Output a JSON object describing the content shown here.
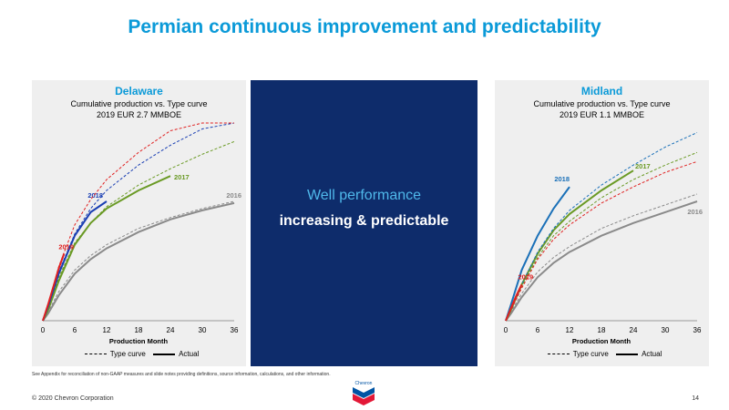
{
  "page": {
    "title": "Permian continuous improvement and predictability",
    "center_line1": "Well performance",
    "center_line2": "increasing & predictable",
    "footnote": "See Appendix for reconciliation of non-GAAP measures and slide notes providing definitions, source information, calculations, and other information.",
    "copyright": "© 2020 Chevron Corporation",
    "page_number": "14",
    "logo_text": "Chevron",
    "colors": {
      "title": "#0b9ad8",
      "center_bg": "#0e2c6b",
      "center_accent": "#4fb8ea",
      "panel_bg": "#efefef"
    }
  },
  "chart_data": [
    {
      "type": "line",
      "title": "Delaware",
      "subtitle": "Cumulative production vs. Type curve",
      "subtitle2": "2019 EUR 2.7 MMBOE",
      "xlabel": "Production Month",
      "ylabel": "",
      "xticks": [
        0,
        6,
        12,
        18,
        24,
        30,
        36
      ],
      "xlim": [
        0,
        36
      ],
      "ylim": [
        0,
        100
      ],
      "grid": false,
      "legend": {
        "position": "bottom",
        "type_curve": "Type curve",
        "actual": "Actual"
      },
      "series": [
        {
          "name": "2016",
          "color": "#8a8a8a",
          "x": [
            0,
            1,
            3,
            6,
            9,
            12,
            18,
            24,
            30,
            36
          ],
          "type_curve": [
            0,
            5,
            16,
            28,
            36,
            42,
            51,
            57,
            62,
            66
          ],
          "actual": [
            0,
            4,
            14,
            26,
            34,
            40,
            49,
            56,
            61,
            65
          ]
        },
        {
          "name": "2017",
          "color": "#6a9a25",
          "x": [
            0,
            1,
            3,
            6,
            9,
            12,
            18,
            24,
            30,
            36
          ],
          "type_curve": [
            0,
            7,
            24,
            43,
            54,
            63,
            75,
            84,
            92,
            99
          ],
          "actual_x": [
            0,
            1,
            3,
            6,
            9,
            12,
            18,
            24
          ],
          "actual": [
            0,
            6,
            22,
            42,
            54,
            62,
            72,
            80
          ]
        },
        {
          "name": "2018",
          "color": "#1a3fb3",
          "x": [
            0,
            1,
            3,
            6,
            9,
            12,
            18,
            24,
            30,
            36
          ],
          "type_curve": [
            0,
            8,
            27,
            48,
            62,
            72,
            86,
            97,
            106,
            114
          ],
          "actual_x": [
            0,
            1,
            3,
            6,
            9,
            12
          ],
          "actual": [
            0,
            8,
            26,
            47,
            60,
            66
          ]
        },
        {
          "name": "2019",
          "color": "#e02020",
          "x": [
            0,
            1,
            3,
            6,
            9,
            12,
            18,
            24,
            30,
            36
          ],
          "type_curve": [
            0,
            9,
            30,
            53,
            67,
            78,
            93,
            105,
            114,
            122
          ],
          "actual_x": [
            0,
            1,
            3,
            4
          ],
          "actual": [
            0,
            9,
            29,
            37
          ]
        }
      ]
    },
    {
      "type": "line",
      "title": "Midland",
      "subtitle": "Cumulative production vs. Type curve",
      "subtitle2": "2019 EUR 1.1 MMBOE",
      "xlabel": "Production Month",
      "ylabel": "",
      "xticks": [
        0,
        6,
        12,
        18,
        24,
        30,
        36
      ],
      "xlim": [
        0,
        36
      ],
      "ylim": [
        0,
        100
      ],
      "grid": false,
      "legend": {
        "position": "bottom",
        "type_curve": "Type curve",
        "actual": "Actual"
      },
      "series": [
        {
          "name": "2016",
          "color": "#8a8a8a",
          "x": [
            0,
            1,
            3,
            6,
            9,
            12,
            18,
            24,
            30,
            36
          ],
          "type_curve": [
            0,
            5,
            15,
            27,
            35,
            41,
            51,
            58,
            64,
            70
          ],
          "actual": [
            0,
            4,
            13,
            24,
            32,
            38,
            47,
            54,
            60,
            66
          ]
        },
        {
          "name": "2017",
          "color": "#6a9a25",
          "x": [
            0,
            1,
            3,
            6,
            9,
            12,
            18,
            24,
            30,
            36
          ],
          "type_curve": [
            0,
            6,
            19,
            35,
            47,
            55,
            68,
            78,
            86,
            93
          ],
          "actual_x": [
            0,
            1,
            3,
            6,
            9,
            12,
            18,
            24
          ],
          "actual": [
            0,
            6,
            20,
            37,
            50,
            59,
            72,
            83
          ]
        },
        {
          "name": "2018",
          "color": "#1a70b8",
          "x": [
            0,
            1,
            3,
            6,
            9,
            12,
            18,
            24,
            30,
            36
          ],
          "type_curve": [
            0,
            6,
            20,
            38,
            51,
            61,
            75,
            86,
            96,
            104
          ],
          "actual_x": [
            0,
            1,
            3,
            6,
            9,
            12
          ],
          "actual": [
            0,
            9,
            28,
            47,
            62,
            74
          ]
        },
        {
          "name": "2019",
          "color": "#e02020",
          "x": [
            0,
            1,
            3,
            6,
            9,
            12,
            18,
            24,
            30,
            36
          ],
          "type_curve": [
            0,
            6,
            18,
            34,
            45,
            53,
            65,
            74,
            82,
            88
          ],
          "actual_x": [
            0,
            1,
            2,
            3
          ],
          "actual": [
            0,
            7,
            14,
            20
          ]
        }
      ]
    }
  ]
}
